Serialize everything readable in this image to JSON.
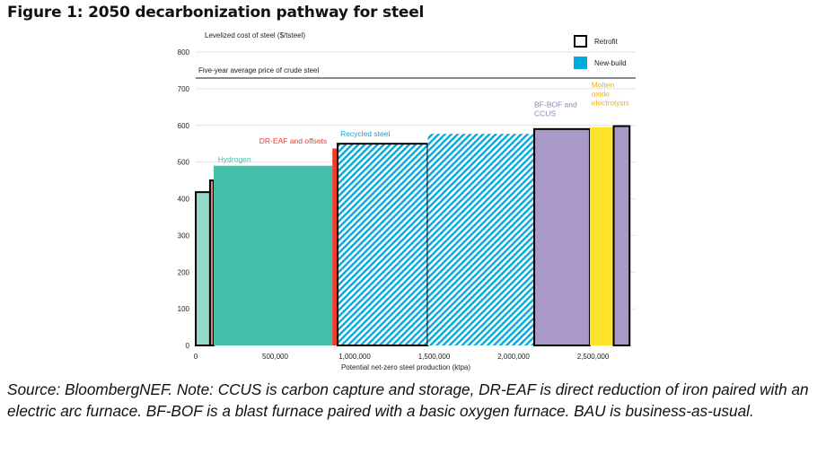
{
  "figure": {
    "title": "Figure 1: 2050 decarbonization pathway for steel",
    "note": "Source: BloombergNEF. Note: CCUS is carbon capture and storage, DR-EAF is direct reduction of iron paired with an electric arc furnace. BF-BOF is a blast furnace paired with a basic oxygen furnace. BAU is business-as-usual."
  },
  "chart_data": {
    "type": "bar",
    "subtype": "variable-width cost curve (marimekko)",
    "title": "",
    "ylabel": "Levelized cost of steel ($/tsteel)",
    "xlabel": "Potential net-zero steel production (ktpa)",
    "ylim": [
      0,
      800
    ],
    "xlim": [
      0,
      2800000
    ],
    "yticks": [
      0,
      100,
      200,
      300,
      400,
      500,
      600,
      700,
      800
    ],
    "ytick_labels": [
      "0",
      "100",
      "200",
      "300",
      "400",
      "500",
      "600",
      "700",
      "800"
    ],
    "xticks": [
      0,
      500000,
      1000000,
      1500000,
      2000000,
      2500000
    ],
    "xtick_labels": [
      "0",
      "500,000",
      "1,000,000",
      "1,500,000",
      "2,000,000",
      "2,500,000"
    ],
    "grid": "horizontal",
    "reference_line": {
      "label": "Five-year average price of crude steel",
      "value": 729
    },
    "legend": {
      "placement": "top-right",
      "entries": [
        {
          "label": "Retrofit",
          "style": "outline",
          "color": "#000000"
        },
        {
          "label": "New-build",
          "style": "fill",
          "color": "#00a9e0"
        }
      ]
    },
    "bars": [
      {
        "name": "hydrogen-retrofit",
        "technology": "Hydrogen",
        "x0": 0,
        "x1": 90000,
        "value": 418,
        "fill": "#94d9cc",
        "retrofit": true,
        "hatched": false
      },
      {
        "name": "dr-eaf-retrofit",
        "technology": "DR-EAF and offsets",
        "x0": 90000,
        "x1": 113000,
        "value": 450,
        "fill": "#e08070",
        "retrofit": true,
        "hatched": false
      },
      {
        "name": "hydrogen-newbuild",
        "technology": "Hydrogen",
        "x0": 113000,
        "x1": 860000,
        "value": 490,
        "fill": "#43bfac",
        "retrofit": false,
        "hatched": false
      },
      {
        "name": "dr-eaf-newbuild",
        "technology": "DR-EAF and offsets",
        "x0": 860000,
        "x1": 893000,
        "value": 537,
        "fill": "#ee3b2c",
        "retrofit": false,
        "hatched": false
      },
      {
        "name": "recycled-retrofit",
        "technology": "Recycled steel",
        "x0": 893000,
        "x1": 1460000,
        "value": 550,
        "fill": "#00a9e0",
        "retrofit": true,
        "hatched": true
      },
      {
        "name": "recycled-newbuild",
        "technology": "Recycled steel",
        "x0": 1460000,
        "x1": 2130000,
        "value": 577,
        "fill": "#00a9e0",
        "retrofit": false,
        "hatched": true
      },
      {
        "name": "bf-bof-ccus-retrofit",
        "technology": "BF-BOF and CCUS",
        "x0": 2130000,
        "x1": 2480000,
        "value": 590,
        "fill": "#a999c8",
        "retrofit": true,
        "hatched": false
      },
      {
        "name": "molten-oxide-newbuild",
        "technology": "Molten oxide electrolysis",
        "x0": 2480000,
        "x1": 2630000,
        "value": 595,
        "fill": "#fde32b",
        "retrofit": false,
        "hatched": false
      },
      {
        "name": "bf-bof-ccus-retrofit-2",
        "technology": "BF-BOF and CCUS",
        "x0": 2630000,
        "x1": 2730000,
        "value": 598,
        "fill": "#a999c8",
        "retrofit": true,
        "hatched": false
      }
    ],
    "annotations": [
      {
        "name": "label-hydrogen",
        "lines": [
          "Hydrogen"
        ],
        "color": "#43bfac",
        "x": 140000,
        "y": 500
      },
      {
        "name": "label-dr-eaf",
        "lines": [
          "DR-EAF and offsets"
        ],
        "color": "#ee3b2c",
        "x": 400000,
        "y": 550
      },
      {
        "name": "label-recycled",
        "lines": [
          "Recycled steel"
        ],
        "color": "#00a9e0",
        "x": 910000,
        "y": 570
      },
      {
        "name": "label-bf-bof",
        "lines": [
          "BF-BOF and",
          "CCUS"
        ],
        "color": "#8e7fb8",
        "x": 2130000,
        "y": 625
      },
      {
        "name": "label-molten-oxide",
        "lines": [
          "Molten",
          "oxide",
          "electrolysis"
        ],
        "color": "#f2b400",
        "x": 2490000,
        "y": 655
      }
    ]
  }
}
